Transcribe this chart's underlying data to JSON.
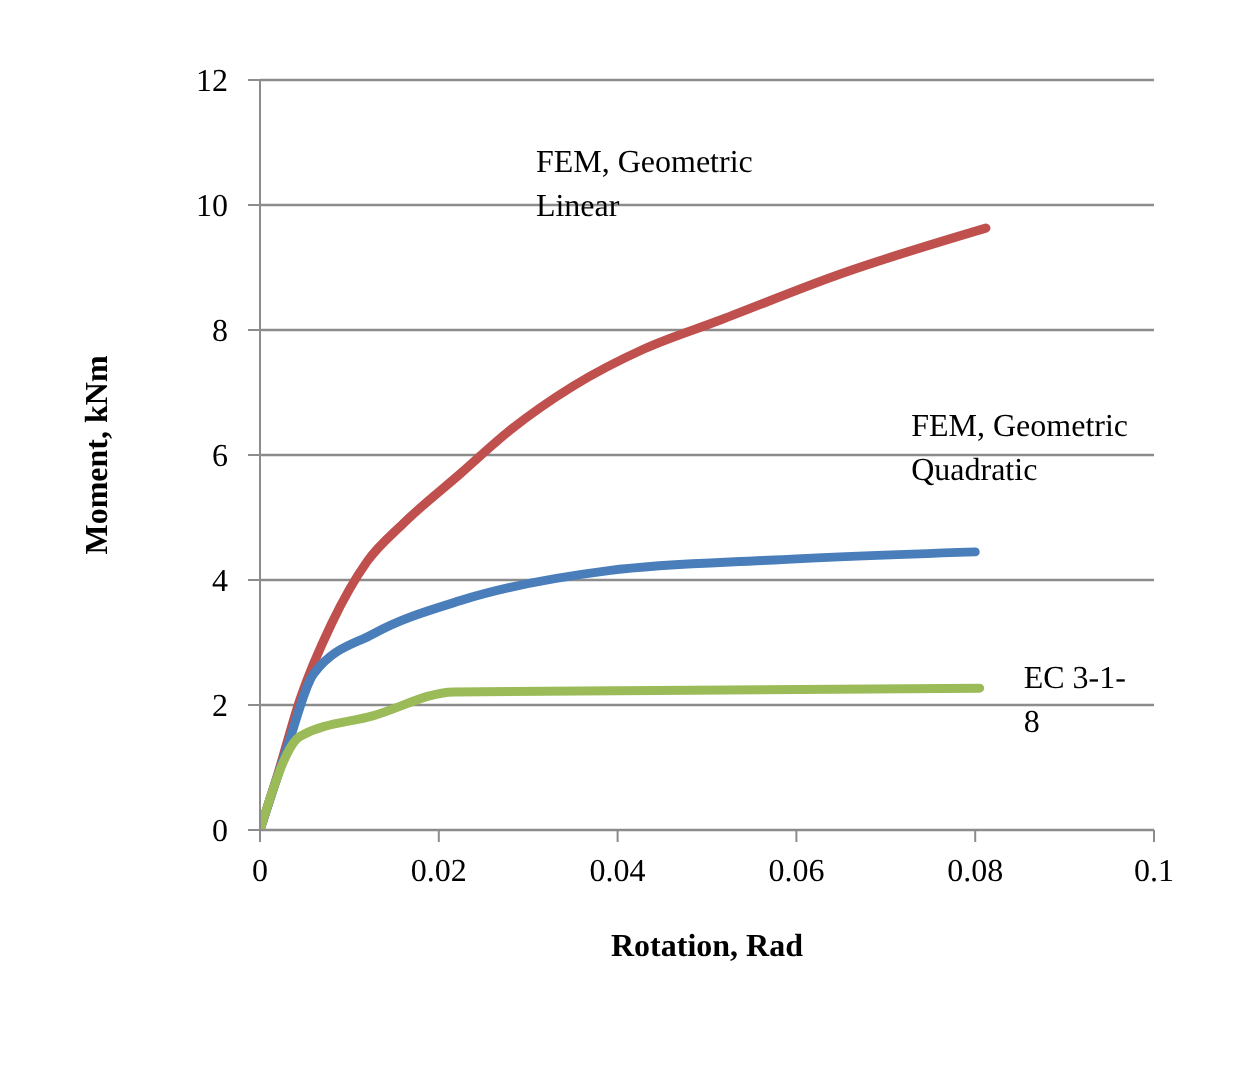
{
  "chart_data": {
    "type": "line",
    "xlabel": "Rotation, Rad",
    "ylabel": "Moment, kNm",
    "xlim": [
      0,
      0.1
    ],
    "xticks": [
      0,
      0.02,
      0.04,
      0.06,
      0.08,
      0.1
    ],
    "ylim": [
      0,
      12
    ],
    "yticks": [
      0,
      2,
      4,
      6,
      8,
      10,
      12
    ],
    "grid": "y",
    "legend": false,
    "marker": "none",
    "line_style": "solid",
    "series": [
      {
        "name": "FEM, Geometric Linear",
        "color": "#c0504d",
        "x": [
          0,
          0.002,
          0.0045,
          0.008,
          0.012,
          0.016,
          0.0224,
          0.028,
          0.035,
          0.043,
          0.0515,
          0.065,
          0.0812
        ],
        "values": [
          0,
          0.9,
          2.1,
          3.3,
          4.3,
          4.9,
          5.7,
          6.4,
          7.1,
          7.7,
          8.16,
          8.9,
          9.63
        ]
      },
      {
        "name": "FEM, Geometric Quadratic",
        "color": "#4a7ebb",
        "x": [
          0,
          0.003,
          0.006,
          0.0127,
          0.0224,
          0.039,
          0.0575,
          0.08
        ],
        "values": [
          0,
          1.3,
          2.5,
          3.14,
          3.67,
          4.15,
          4.32,
          4.45
        ]
      },
      {
        "name": "EC 3-1-8",
        "color": "#9bbb59",
        "x": [
          0,
          0.0045,
          0.0127,
          0.0217,
          0.0805
        ],
        "values": [
          0,
          1.5,
          1.83,
          2.21,
          2.27
        ]
      }
    ]
  }
}
